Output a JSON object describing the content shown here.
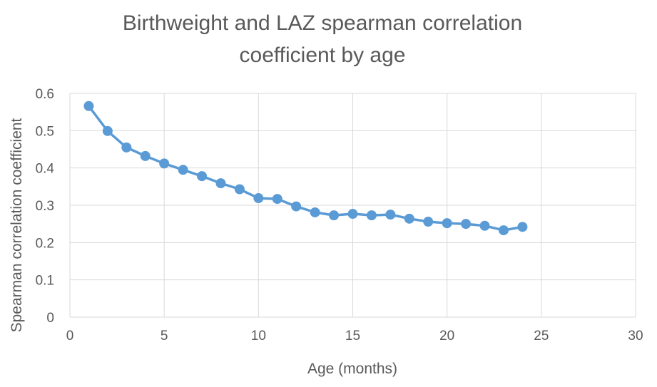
{
  "chart_data": {
    "type": "line",
    "title": "Birthweight and LAZ spearman correlation coefficient by age",
    "title_lines": [
      "Birthweight and LAZ spearman correlation",
      "coefficient by age"
    ],
    "xlabel": "Age (months)",
    "ylabel": "Spearman correlation coefficient",
    "xlim": [
      0,
      30
    ],
    "ylim": [
      0,
      0.6
    ],
    "x_ticks": [
      0,
      5,
      10,
      15,
      20,
      25,
      30
    ],
    "y_ticks": [
      0,
      0.1,
      0.2,
      0.3,
      0.4,
      0.5,
      0.6
    ],
    "grid": true,
    "legend": "none",
    "series": [
      {
        "x": [
          1,
          2,
          3,
          4,
          5,
          6,
          7,
          8,
          9,
          10,
          11,
          12,
          13,
          14,
          15,
          16,
          17,
          18,
          19,
          20,
          21,
          22,
          23,
          24
        ],
        "values": [
          0.566,
          0.499,
          0.455,
          0.432,
          0.412,
          0.395,
          0.378,
          0.359,
          0.343,
          0.319,
          0.317,
          0.297,
          0.281,
          0.273,
          0.277,
          0.273,
          0.275,
          0.264,
          0.256,
          0.252,
          0.25,
          0.245,
          0.233,
          0.242
        ],
        "color": "#5B9BD5"
      }
    ]
  },
  "colors": {
    "series": "#5B9BD5",
    "grid": "#D9D9D9",
    "text": "#595959"
  }
}
